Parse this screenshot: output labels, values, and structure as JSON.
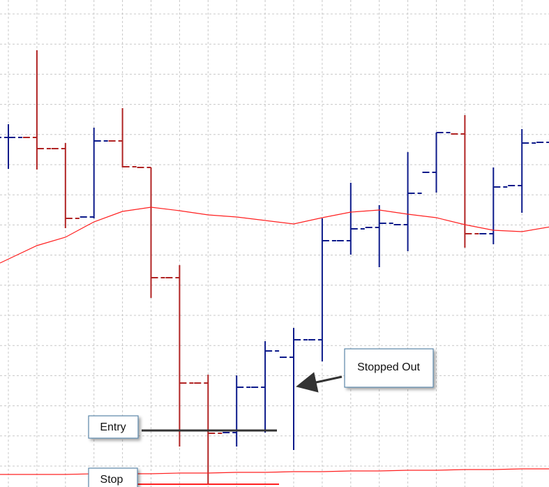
{
  "chart_data": {
    "type": "ohlc",
    "up_color": "#0c1a8a",
    "down_color": "#b02323",
    "ylim": [
      0,
      698
    ],
    "grid": true,
    "open": [
      501,
      501,
      485,
      387,
      496,
      458,
      300,
      149,
      78,
      143,
      186,
      211,
      353,
      372,
      376,
      451,
      506,
      363,
      432,
      494
    ],
    "high": [
      520,
      626,
      493,
      515,
      543,
      458,
      318,
      161,
      160,
      209,
      228,
      385,
      436,
      404,
      480,
      508,
      533,
      458,
      513,
      620
    ],
    "low": [
      456,
      455,
      371,
      385,
      458,
      271,
      58,
      3,
      58,
      78,
      53,
      180,
      333,
      315,
      338,
      422,
      343,
      348,
      393,
      456
    ],
    "close": [
      501,
      485,
      385,
      496,
      459,
      300,
      149,
      77,
      143,
      195,
      211,
      353,
      370,
      378,
      421,
      508,
      363,
      430,
      493,
      606
    ],
    "lines": [
      {
        "color": "#ff2020",
        "values": [
          321,
          346,
          358,
          380,
          395,
          401,
          396,
          390,
          387,
          382,
          377,
          386,
          394,
          397,
          391,
          386,
          376,
          368,
          366,
          373
        ]
      },
      {
        "color": "#ff2020",
        "values": [
          18,
          18,
          18,
          19,
          19,
          19,
          20,
          20,
          21,
          21,
          22,
          22,
          23,
          23,
          24,
          24,
          25,
          25,
          26,
          26
        ]
      }
    ],
    "annotations": [
      {
        "text": "Entry",
        "value": 81,
        "color": "#333333"
      },
      {
        "text": "Stop",
        "value": 4,
        "color": "#ff2020"
      },
      {
        "text": "Stopped Out"
      }
    ]
  }
}
